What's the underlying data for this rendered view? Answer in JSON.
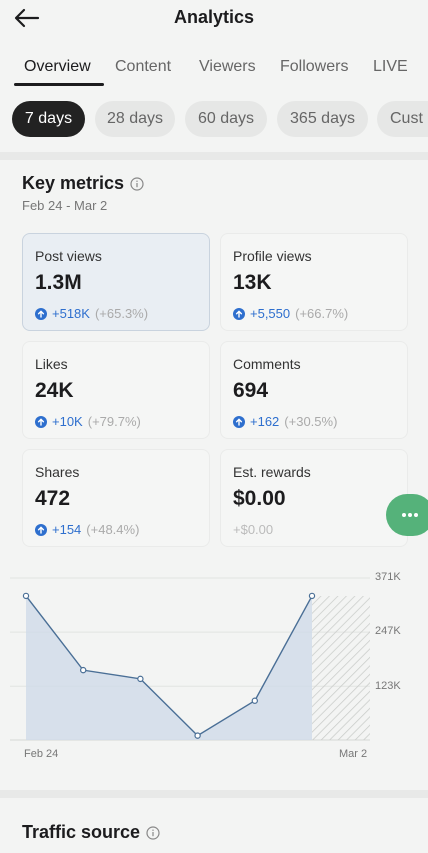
{
  "header": {
    "title": "Analytics",
    "back_icon": "back-arrow-icon"
  },
  "tabs": [
    {
      "label": "Overview",
      "active": true
    },
    {
      "label": "Content",
      "active": false
    },
    {
      "label": "Viewers",
      "active": false
    },
    {
      "label": "Followers",
      "active": false
    },
    {
      "label": "LIVE",
      "active": false
    }
  ],
  "range_pills": [
    {
      "label": "7 days",
      "active": true
    },
    {
      "label": "28 days",
      "active": false
    },
    {
      "label": "60 days",
      "active": false
    },
    {
      "label": "365 days",
      "active": false
    },
    {
      "label": "Cust",
      "active": false
    }
  ],
  "key_metrics": {
    "title": "Key metrics",
    "date_range": "Feb 24 - Mar 2",
    "cards": [
      {
        "label": "Post views",
        "value": "1.3M",
        "delta": "+518K",
        "pct": "(+65.3%)",
        "up": true,
        "selected": true
      },
      {
        "label": "Profile views",
        "value": "13K",
        "delta": "+5,550",
        "pct": "(+66.7%)",
        "up": true,
        "selected": false
      },
      {
        "label": "Likes",
        "value": "24K",
        "delta": "+10K",
        "pct": "(+79.7%)",
        "up": true,
        "selected": false
      },
      {
        "label": "Comments",
        "value": "694",
        "delta": "+162",
        "pct": "(+30.5%)",
        "up": true,
        "selected": false
      },
      {
        "label": "Shares",
        "value": "472",
        "delta": "+154",
        "pct": "(+48.4%)",
        "up": true,
        "selected": false
      },
      {
        "label": "Est. rewards",
        "value": "$0.00",
        "delta": "+$0.00",
        "pct": "",
        "up": false,
        "selected": false
      }
    ]
  },
  "fab": {
    "icon": "more-dots-icon",
    "color": "#55b27a"
  },
  "chart_data": {
    "type": "area",
    "x_labels": [
      "Feb 24",
      "Mar 2"
    ],
    "y_ticks": [
      "371K",
      "247K",
      "123K"
    ],
    "y_tick_values": [
      371000,
      247000,
      123000
    ],
    "ylim": [
      0,
      371000
    ],
    "values": [
      330000,
      160000,
      140000,
      10000,
      90000,
      330000
    ],
    "partial_last_day": true,
    "accent": "#4a6f96"
  },
  "traffic_source": {
    "title": "Traffic source"
  },
  "colors": {
    "accent_blue": "#2e6fce",
    "active_pill": "#222222"
  }
}
